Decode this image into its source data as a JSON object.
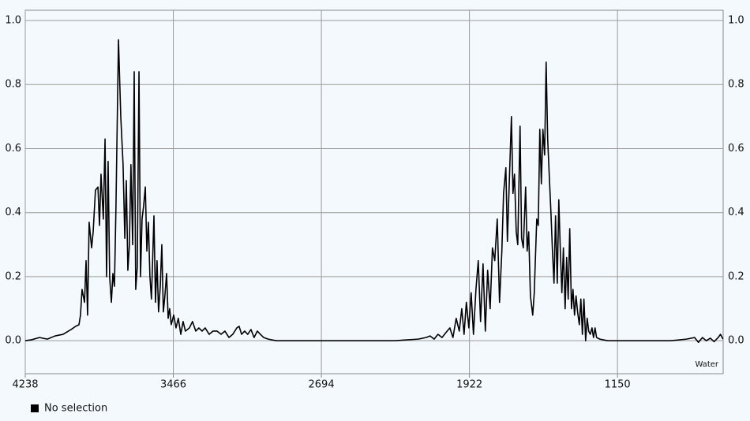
{
  "chart_data": {
    "type": "line",
    "annotation": "Water",
    "xlim": [
      4238,
      599
    ],
    "ylim": [
      -0.103,
      1.032
    ],
    "xticks": [
      4238,
      3466,
      2694,
      1922,
      1150
    ],
    "yticks": [
      {
        "value": 0,
        "label": "0.0"
      },
      0.2,
      0.4,
      0.6,
      0.8,
      {
        "value": 1,
        "label": "1.0"
      }
    ],
    "grid": true,
    "right_axis": true,
    "x": [
      4238,
      4205,
      4164,
      4123,
      4082,
      4041,
      3999,
      3975,
      3958,
      3950,
      3942,
      3929,
      3921,
      3913,
      3905,
      3892,
      3884,
      3872,
      3859,
      3851,
      3843,
      3831,
      3822,
      3814,
      3806,
      3798,
      3789,
      3781,
      3773,
      3765,
      3752,
      3740,
      3728,
      3719,
      3711,
      3703,
      3695,
      3687,
      3678,
      3670,
      3662,
      3654,
      3645,
      3637,
      3629,
      3621,
      3612,
      3604,
      3596,
      3588,
      3580,
      3567,
      3559,
      3551,
      3543,
      3534,
      3526,
      3518,
      3510,
      3501,
      3493,
      3485,
      3477,
      3464,
      3452,
      3440,
      3427,
      3415,
      3403,
      3382,
      3366,
      3349,
      3333,
      3316,
      3300,
      3279,
      3259,
      3238,
      3217,
      3197,
      3176,
      3156,
      3135,
      3123,
      3110,
      3094,
      3078,
      3061,
      3045,
      3028,
      3012,
      2995,
      2971,
      2929,
      2724,
      2518,
      2312,
      2189,
      2148,
      2127,
      2106,
      2086,
      2065,
      2045,
      2024,
      2008,
      1991,
      1975,
      1962,
      1950,
      1938,
      1925,
      1913,
      1901,
      1888,
      1876,
      1864,
      1851,
      1839,
      1827,
      1814,
      1802,
      1790,
      1777,
      1765,
      1753,
      1744,
      1732,
      1724,
      1715,
      1703,
      1695,
      1687,
      1678,
      1670,
      1658,
      1650,
      1641,
      1629,
      1621,
      1613,
      1604,
      1592,
      1584,
      1571,
      1563,
      1555,
      1547,
      1539,
      1530,
      1522,
      1514,
      1506,
      1497,
      1489,
      1481,
      1473,
      1464,
      1456,
      1448,
      1440,
      1432,
      1423,
      1415,
      1407,
      1399,
      1390,
      1382,
      1374,
      1366,
      1358,
      1349,
      1341,
      1333,
      1325,
      1316,
      1308,
      1300,
      1292,
      1283,
      1275,
      1267,
      1259,
      1242,
      1201,
      1078,
      872,
      790,
      748,
      728,
      707,
      687,
      666,
      646,
      625,
      613,
      600
    ],
    "series": [
      {
        "name": "No selection",
        "color": "#000000",
        "values": [
          0,
          0.003,
          0.01,
          0.005,
          0.015,
          0.02,
          0.035,
          0.045,
          0.05,
          0.08,
          0.16,
          0.12,
          0.25,
          0.08,
          0.37,
          0.29,
          0.34,
          0.47,
          0.48,
          0.36,
          0.52,
          0.38,
          0.63,
          0.2,
          0.56,
          0.2,
          0.12,
          0.21,
          0.17,
          0.42,
          0.94,
          0.7,
          0.55,
          0.32,
          0.5,
          0.22,
          0.3,
          0.55,
          0.3,
          0.84,
          0.16,
          0.23,
          0.84,
          0.2,
          0.38,
          0.42,
          0.48,
          0.28,
          0.37,
          0.2,
          0.13,
          0.39,
          0.12,
          0.25,
          0.09,
          0.17,
          0.3,
          0.09,
          0.14,
          0.21,
          0.07,
          0.1,
          0.05,
          0.08,
          0.04,
          0.07,
          0.02,
          0.06,
          0.03,
          0.04,
          0.06,
          0.03,
          0.04,
          0.03,
          0.04,
          0.02,
          0.03,
          0.03,
          0.02,
          0.03,
          0.01,
          0.02,
          0.04,
          0.045,
          0.02,
          0.03,
          0.02,
          0.035,
          0.01,
          0.03,
          0.02,
          0.01,
          0.005,
          0,
          0,
          0,
          0,
          0.005,
          0.01,
          0.015,
          0.005,
          0.02,
          0.01,
          0.025,
          0.04,
          0.01,
          0.07,
          0.03,
          0.1,
          0.02,
          0.12,
          0.04,
          0.15,
          0.02,
          0.16,
          0.25,
          0.06,
          0.24,
          0.03,
          0.22,
          0.1,
          0.29,
          0.25,
          0.38,
          0.12,
          0.28,
          0.46,
          0.54,
          0.31,
          0.48,
          0.7,
          0.46,
          0.52,
          0.34,
          0.3,
          0.67,
          0.32,
          0.29,
          0.48,
          0.28,
          0.34,
          0.14,
          0.08,
          0.15,
          0.38,
          0.36,
          0.66,
          0.49,
          0.66,
          0.58,
          0.87,
          0.63,
          0.52,
          0.4,
          0.28,
          0.18,
          0.39,
          0.18,
          0.44,
          0.28,
          0.15,
          0.29,
          0.1,
          0.26,
          0.13,
          0.35,
          0.1,
          0.16,
          0.08,
          0.14,
          0.09,
          0.05,
          0.13,
          0.02,
          0.13,
          0,
          0.07,
          0.03,
          0.02,
          0.04,
          0.01,
          0.04,
          0.01,
          0.005,
          0,
          0,
          0,
          0.005,
          0.01,
          -0.005,
          0.01,
          0,
          0.008,
          -0.003,
          0.01,
          0.02,
          0.005
        ]
      }
    ]
  }
}
